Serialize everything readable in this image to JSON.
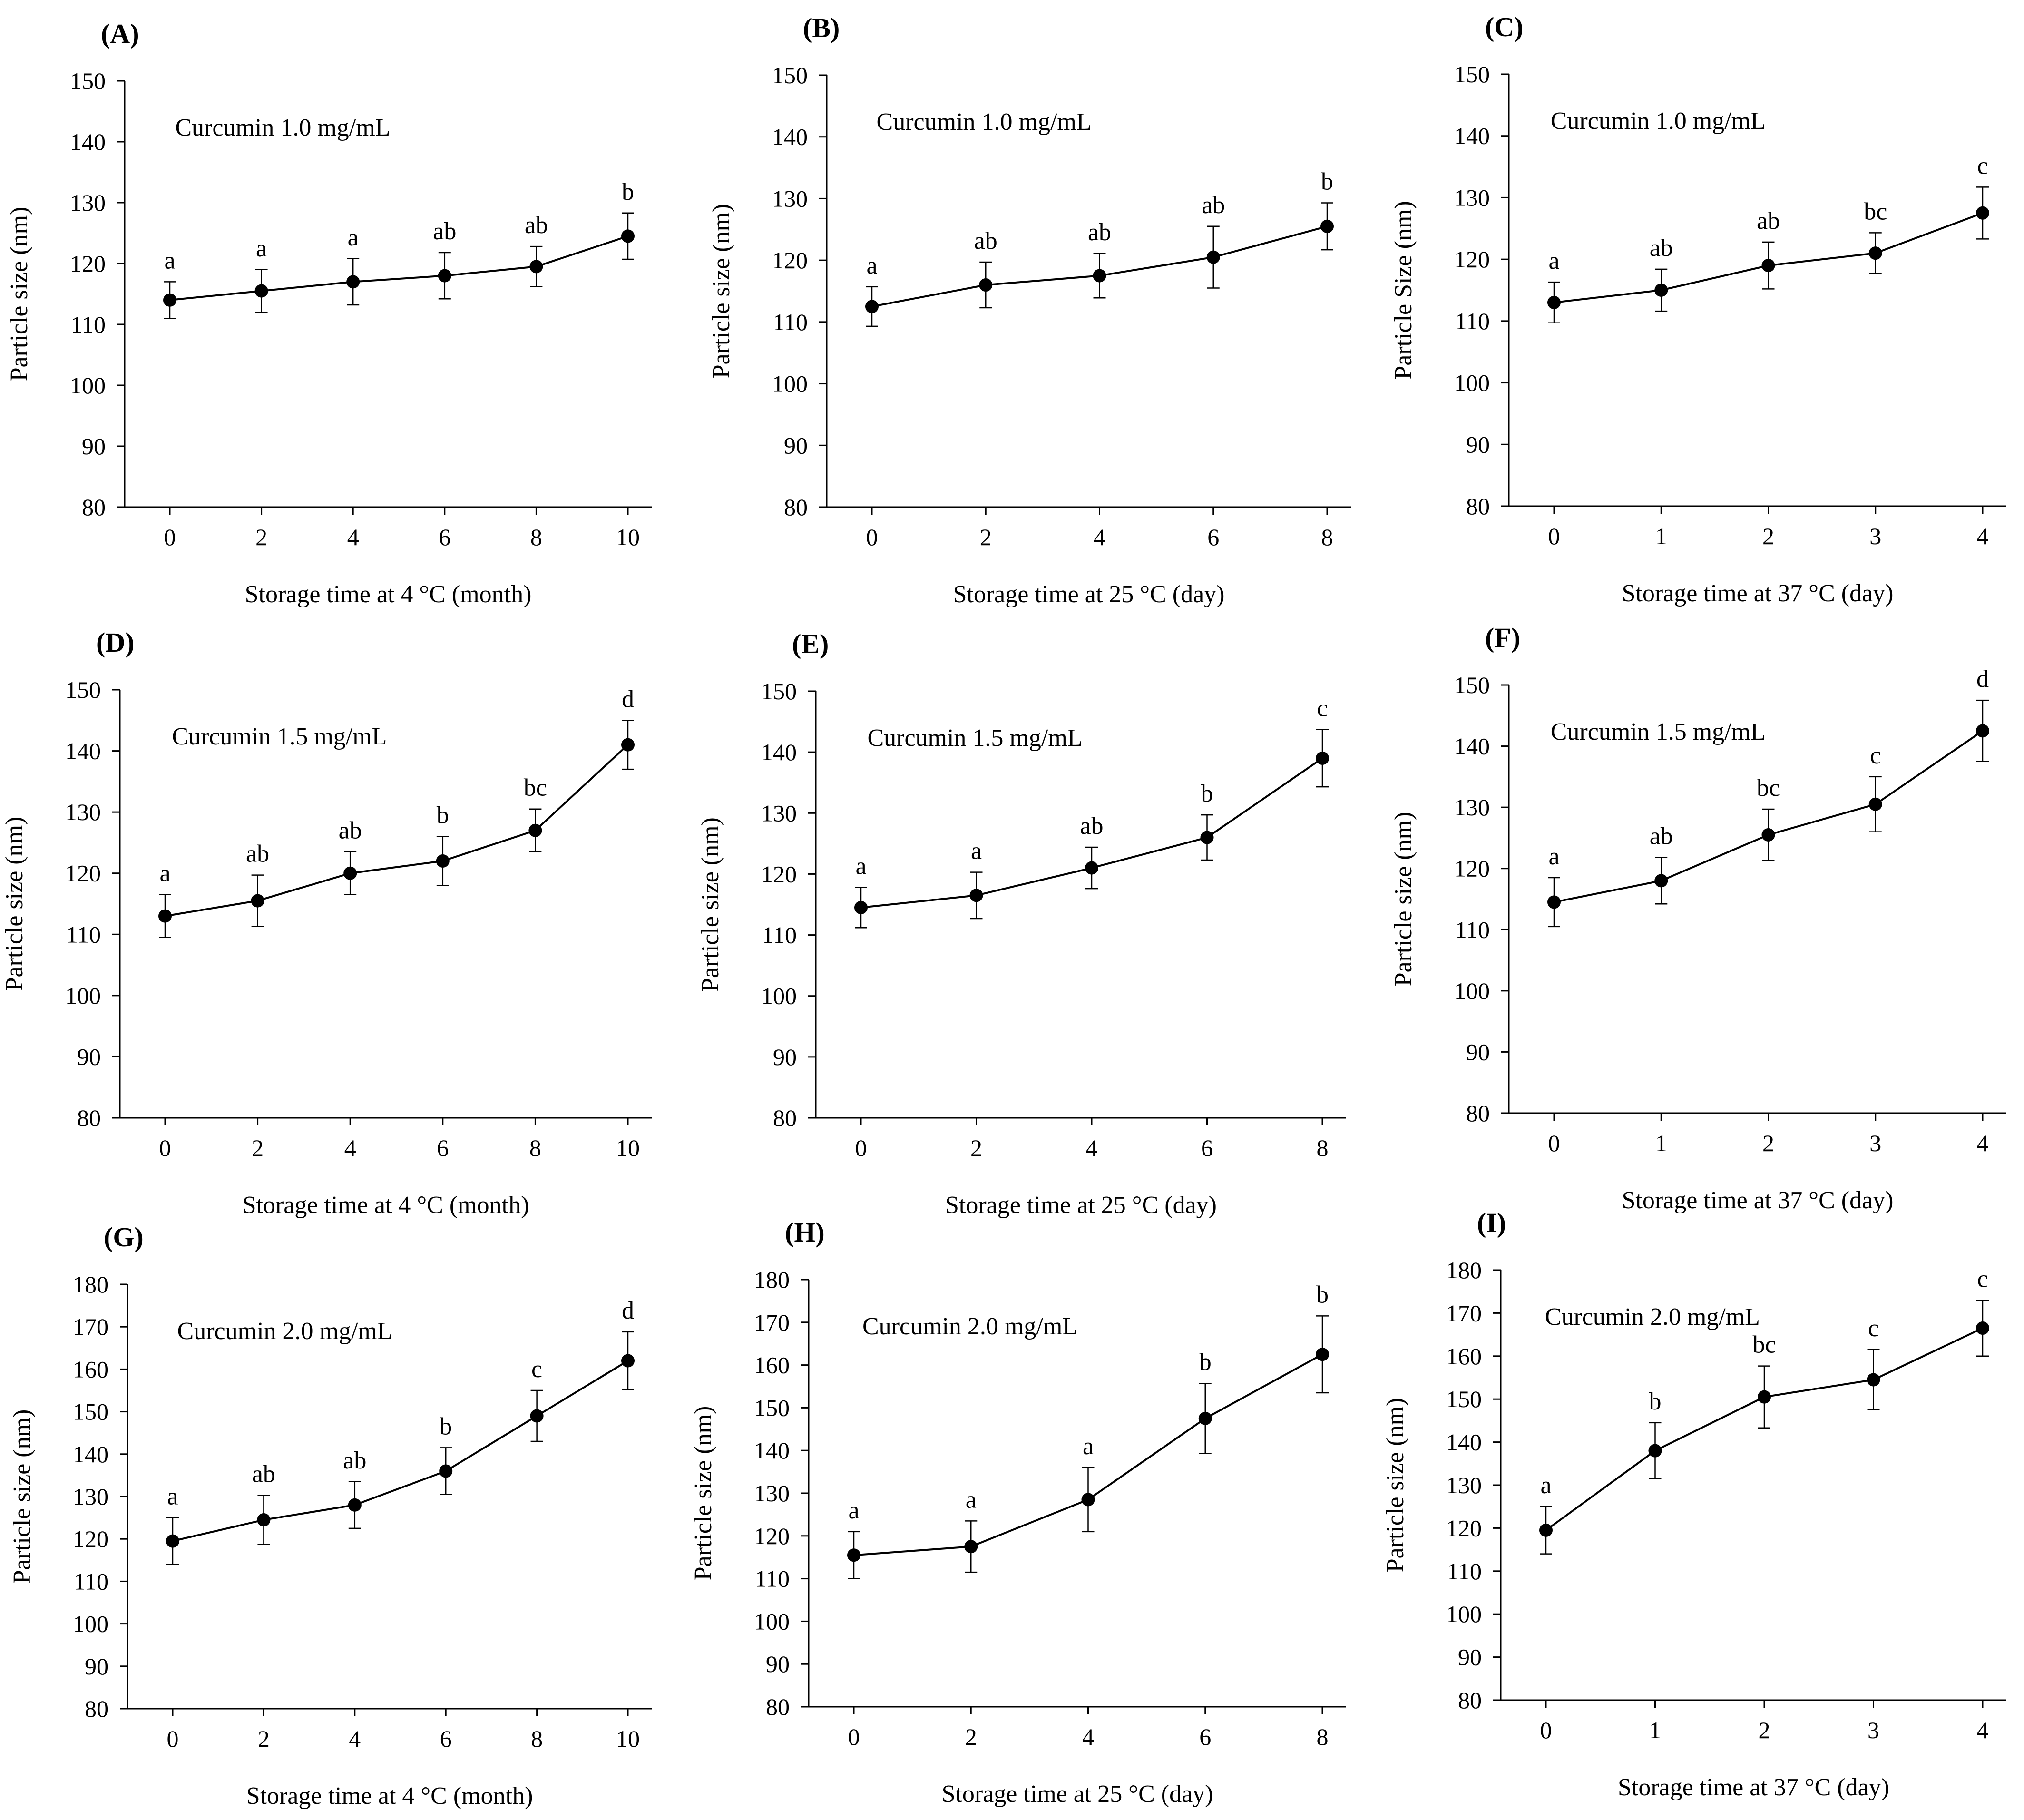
{
  "chart_data": [
    {
      "panel": "(A)",
      "type": "line",
      "title": "Curcumin 1.0 mg/mL",
      "xlabel": "Storage time at 4 °C (month)",
      "ylabel": "Particle size (nm)",
      "x": [
        0,
        2,
        4,
        6,
        8,
        10
      ],
      "ylim": [
        80,
        150
      ],
      "yticks": [
        80,
        90,
        100,
        110,
        120,
        130,
        140,
        150
      ],
      "series": [
        {
          "values": [
            114,
            115.5,
            117,
            118,
            119.5,
            124.5
          ],
          "errors": [
            3,
            3.5,
            3.8,
            3.8,
            3.3,
            3.8
          ]
        }
      ],
      "annotations": [
        "a",
        "a",
        "a",
        "ab",
        "ab",
        "b"
      ]
    },
    {
      "panel": "(B)",
      "type": "line",
      "title": "Curcumin 1.0 mg/mL",
      "xlabel": "Storage time at 25 °C (day)",
      "ylabel": "Particle size (nm)",
      "x": [
        0,
        2,
        4,
        6,
        8
      ],
      "ylim": [
        80,
        150
      ],
      "yticks": [
        80,
        90,
        100,
        110,
        120,
        130,
        140,
        150
      ],
      "series": [
        {
          "values": [
            112.5,
            116,
            117.5,
            120.5,
            125.5
          ],
          "errors": [
            3.2,
            3.7,
            3.6,
            5,
            3.8
          ]
        }
      ],
      "annotations": [
        "a",
        "ab",
        "ab",
        "ab",
        "b"
      ]
    },
    {
      "panel": "(C)",
      "type": "line",
      "title": "Curcumin 1.0 mg/mL",
      "xlabel": "Storage time at 37 °C (day)",
      "ylabel": "Particle Size (nm)",
      "x": [
        0,
        1,
        2,
        3,
        4
      ],
      "ylim": [
        80,
        150
      ],
      "yticks": [
        80,
        90,
        100,
        110,
        120,
        130,
        140,
        150
      ],
      "series": [
        {
          "values": [
            113,
            115,
            119,
            121,
            127.5
          ],
          "errors": [
            3.3,
            3.4,
            3.8,
            3.3,
            4.2
          ]
        }
      ],
      "annotations": [
        "a",
        "ab",
        "ab",
        "bc",
        "c"
      ]
    },
    {
      "panel": "(D)",
      "type": "line",
      "title": "Curcumin 1.5 mg/mL",
      "xlabel": "Storage time at 4 °C (month)",
      "ylabel": "Particle size (nm)",
      "x": [
        0,
        2,
        4,
        6,
        8,
        10
      ],
      "ylim": [
        80,
        150
      ],
      "yticks": [
        80,
        90,
        100,
        110,
        120,
        130,
        140,
        150
      ],
      "series": [
        {
          "values": [
            113,
            115.5,
            120,
            122,
            127,
            141
          ],
          "errors": [
            3.5,
            4.2,
            3.5,
            4,
            3.5,
            4
          ]
        }
      ],
      "annotations": [
        "a",
        "ab",
        "ab",
        "b",
        "bc",
        "d"
      ]
    },
    {
      "panel": "(E)",
      "type": "line",
      "title": "Curcumin 1.5 mg/mL",
      "xlabel": "Storage time at 25 °C (day)",
      "ylabel": "Particle size (nm)",
      "x": [
        0,
        2,
        4,
        6,
        8
      ],
      "ylim": [
        80,
        150
      ],
      "yticks": [
        80,
        90,
        100,
        110,
        120,
        130,
        140,
        150
      ],
      "series": [
        {
          "values": [
            114.5,
            116.5,
            121,
            126,
            139
          ],
          "errors": [
            3.3,
            3.8,
            3.4,
            3.7,
            4.7
          ]
        }
      ],
      "annotations": [
        "a",
        "a",
        "ab",
        "b",
        "c"
      ]
    },
    {
      "panel": "(F)",
      "type": "line",
      "title": "Curcumin 1.5 mg/mL",
      "xlabel": "Storage time at 37 °C (day)",
      "ylabel": "Particle size (nm)",
      "x": [
        0,
        1,
        2,
        3,
        4
      ],
      "ylim": [
        80,
        150
      ],
      "yticks": [
        80,
        90,
        100,
        110,
        120,
        130,
        140,
        150
      ],
      "series": [
        {
          "values": [
            114.5,
            118,
            125.5,
            130.5,
            142.5
          ],
          "errors": [
            4,
            3.8,
            4.2,
            4.5,
            5
          ]
        }
      ],
      "annotations": [
        "a",
        "ab",
        "bc",
        "c",
        "d"
      ]
    },
    {
      "panel": "(G)",
      "type": "line",
      "title": "Curcumin 2.0 mg/mL",
      "xlabel": "Storage time at 4 °C (month)",
      "ylabel": "Particle size (nm)",
      "x": [
        0,
        2,
        4,
        6,
        8,
        10
      ],
      "ylim": [
        80,
        180
      ],
      "yticks": [
        80,
        90,
        100,
        110,
        120,
        130,
        140,
        150,
        160,
        170,
        180
      ],
      "series": [
        {
          "values": [
            119.5,
            124.5,
            128,
            136,
            149,
            162
          ],
          "errors": [
            5.5,
            5.8,
            5.5,
            5.5,
            6,
            6.8
          ]
        }
      ],
      "annotations": [
        "a",
        "ab",
        "ab",
        "b",
        "c",
        "d"
      ]
    },
    {
      "panel": "(H)",
      "type": "line",
      "title": "Curcumin 2.0 mg/mL",
      "xlabel": "Storage time at 25 °C (day)",
      "ylabel": "Particle size (nm)",
      "x": [
        0,
        2,
        4,
        6,
        8
      ],
      "ylim": [
        80,
        180
      ],
      "yticks": [
        80,
        90,
        100,
        110,
        120,
        130,
        140,
        150,
        160,
        170,
        180
      ],
      "series": [
        {
          "values": [
            115.5,
            117.5,
            128.5,
            147.5,
            162.5
          ],
          "errors": [
            5.5,
            6,
            7.5,
            8.2,
            9
          ]
        }
      ],
      "annotations": [
        "a",
        "a",
        "a",
        "b",
        "b"
      ]
    },
    {
      "panel": "(I)",
      "type": "line",
      "title": "Curcumin 2.0 mg/mL",
      "xlabel": "Storage time at 37 °C (day)",
      "ylabel": "Particle size (nm)",
      "x": [
        0,
        1,
        2,
        3,
        4
      ],
      "ylim": [
        80,
        180
      ],
      "yticks": [
        80,
        90,
        100,
        110,
        120,
        130,
        140,
        150,
        160,
        170,
        180
      ],
      "series": [
        {
          "values": [
            119.5,
            138,
            150.5,
            154.5,
            166.5
          ],
          "errors": [
            5.5,
            6.5,
            7.2,
            7,
            6.5
          ]
        }
      ],
      "annotations": [
        "a",
        "b",
        "bc",
        "c",
        "c"
      ]
    }
  ]
}
